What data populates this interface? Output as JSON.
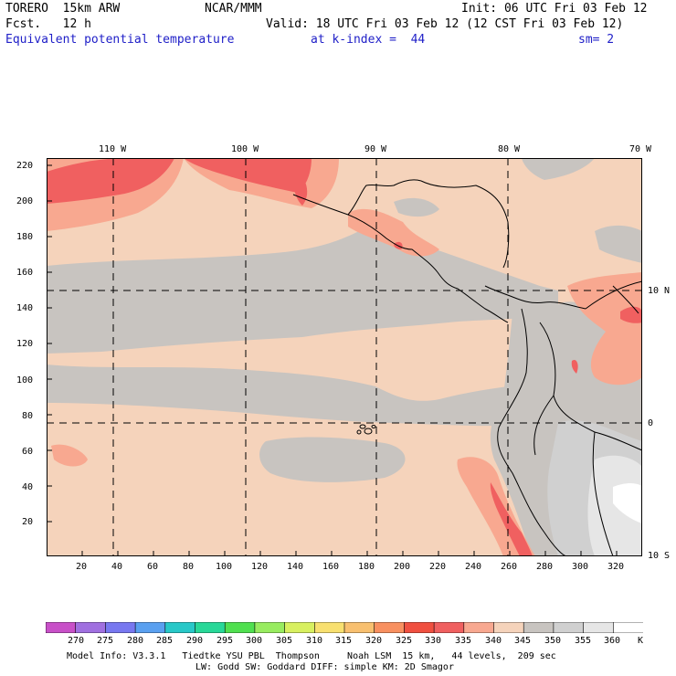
{
  "header": {
    "model": "TORERO  15km ARW",
    "org": "NCAR/MMM",
    "init": "Init: 06 UTC Fri 03 Feb 12",
    "fcst": "Fcst.   12 h",
    "valid": "Valid: 18 UTC Fri 03 Feb 12 (12 CST Fri 03 Feb 12)",
    "field": "Equivalent potential temperature",
    "level": "at k-index =  44",
    "smoothing": "sm= 2"
  },
  "map": {
    "lon_labels": [
      "110 W",
      "100 W",
      "90 W",
      "80 W",
      "70 W"
    ],
    "lat_labels": [
      "10 N",
      "0",
      "10 S"
    ],
    "x_grid_labels": [
      "20",
      "40",
      "60",
      "80",
      "100",
      "120",
      "140",
      "160",
      "180",
      "200",
      "220",
      "240",
      "260",
      "280",
      "300",
      "320"
    ],
    "y_grid_labels": [
      "20",
      "40",
      "60",
      "80",
      "100",
      "120",
      "140",
      "160",
      "180",
      "200",
      "220"
    ],
    "x_range": [
      1,
      333
    ],
    "y_range": [
      1,
      223
    ]
  },
  "colorbar": {
    "unit": "K",
    "labels": [
      "270",
      "275",
      "280",
      "285",
      "290",
      "295",
      "300",
      "305",
      "310",
      "315",
      "320",
      "325",
      "330",
      "335",
      "340",
      "345",
      "350",
      "355",
      "360"
    ],
    "colors": [
      "#c850c8",
      "#a070e0",
      "#7878f0",
      "#5aa0f0",
      "#28c8c8",
      "#28d898",
      "#50e050",
      "#98ec60",
      "#d8f060",
      "#f8e070",
      "#f8c070",
      "#f89060",
      "#f05040",
      "#f06060",
      "#f8a890",
      "#f5d3bb",
      "#c8c4c0",
      "#d0d0d0",
      "#e6e6e6",
      "#ffffff"
    ]
  },
  "footer": {
    "line1": "Model Info: V3.3.1   Tiedtke YSU PBL  Thompson     Noah LSM  15 km,   44 levels,  209 sec",
    "line2": "LW: Godd SW: Goddard DIFF: simple KM: 2D Smagor"
  }
}
